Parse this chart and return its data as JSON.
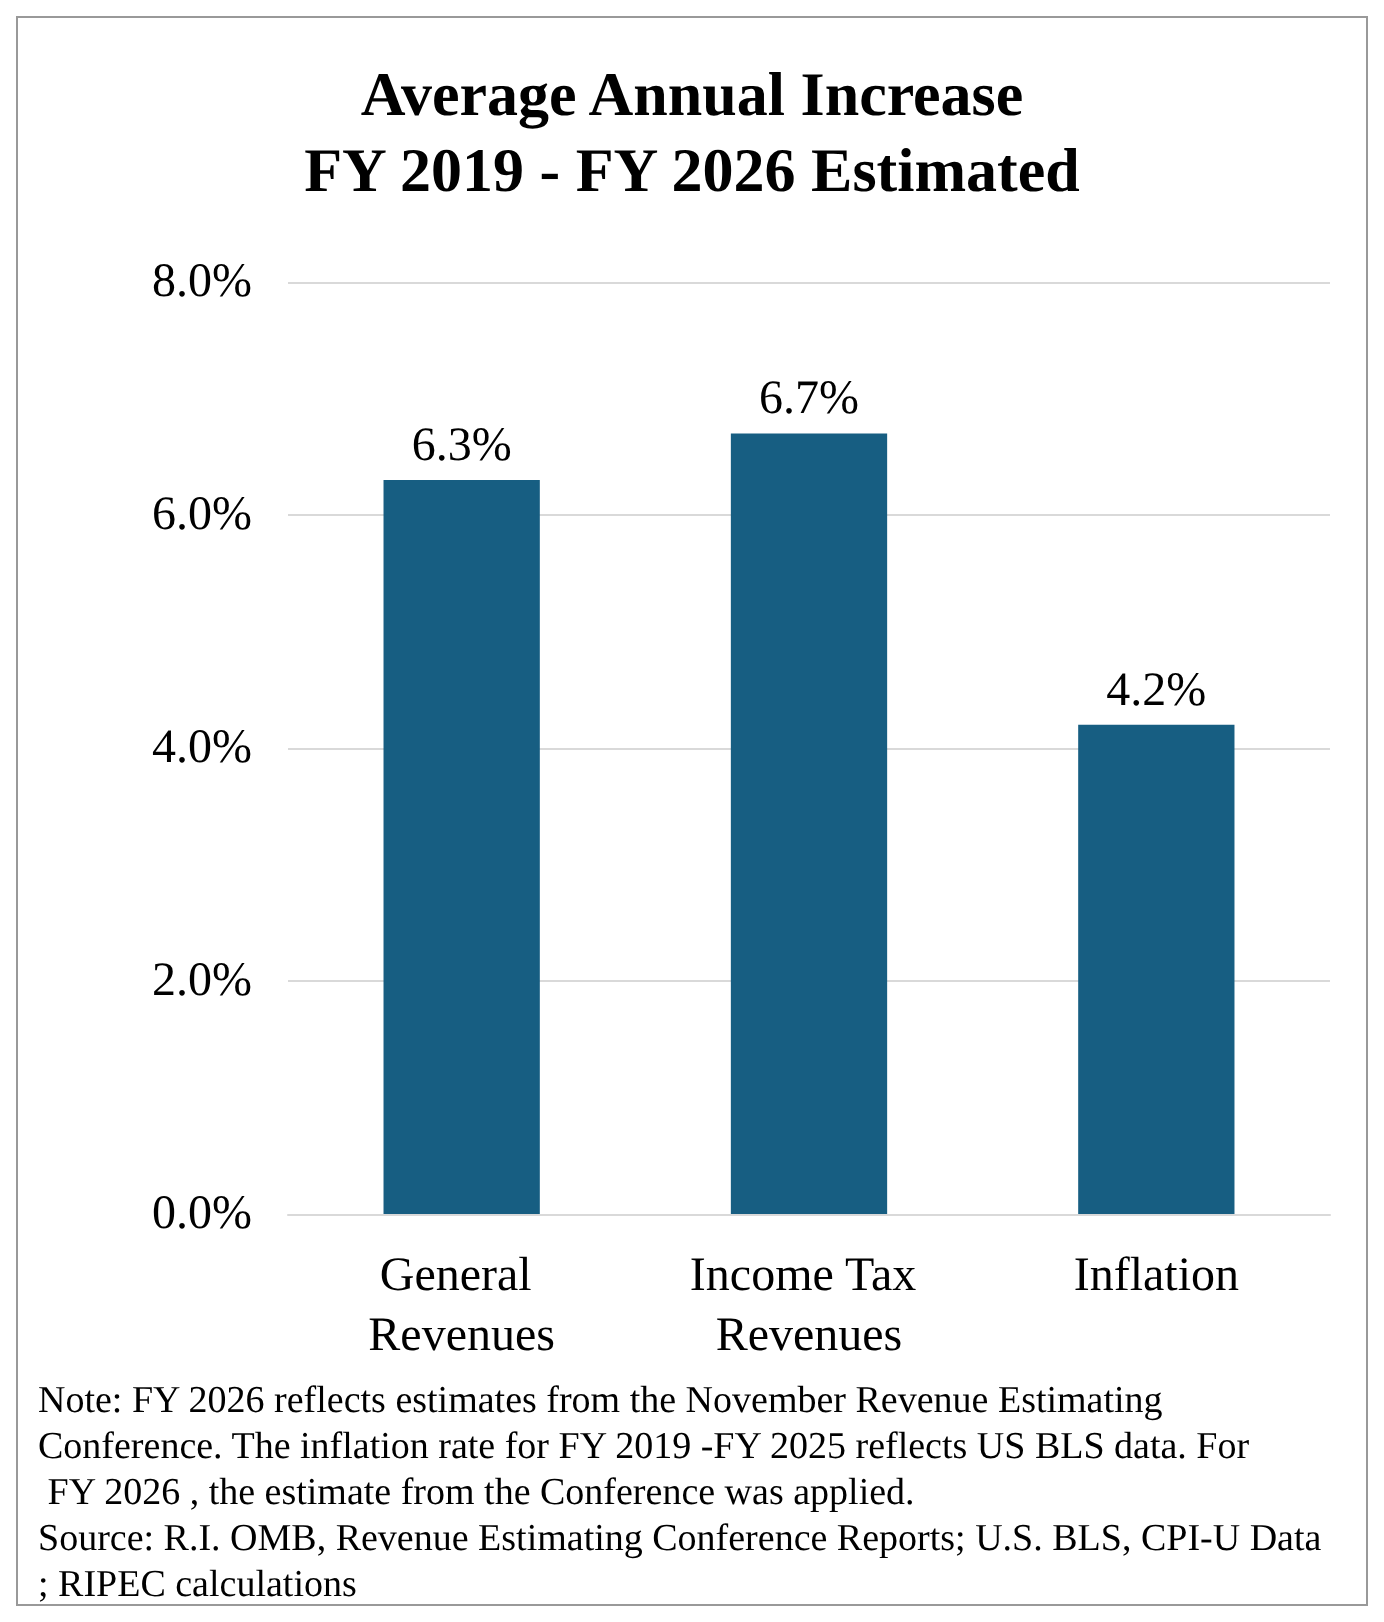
{
  "chart_data": {
    "type": "bar",
    "title": "Average Annual Increase\nFY 2019 - FY 2026 Estimated",
    "categories": [
      "General Revenues",
      "Income Tax Revenues",
      "Inflation"
    ],
    "values": [
      6.3,
      6.7,
      4.2
    ],
    "color": "#175e82",
    "value_labels": [
      "6.3%",
      "6.7%",
      "4.2%"
    ],
    "ylim": [
      0,
      8
    ],
    "yticks": [
      {
        "value": 0,
        "label": "0.0%"
      },
      {
        "value": 2,
        "label": "2.0%"
      },
      {
        "value": 4,
        "label": "4.0%"
      },
      {
        "value": 6,
        "label": "6.0%"
      },
      {
        "value": 8,
        "label": "8.0%"
      }
    ],
    "grid": "y",
    "annotations": [
      "Note: FY 2026 reflects estimates from the November Revenue Estimating Conference. The inflation rate for FY 2019 -FY 2025 reflects US BLS data. For FY 2026 , the estimate from the Conference was applied.",
      "Source: R.I. OMB, Revenue Estimating Conference Reports; U.S. BLS, CPI-U Data; RIPEC calculations"
    ]
  }
}
